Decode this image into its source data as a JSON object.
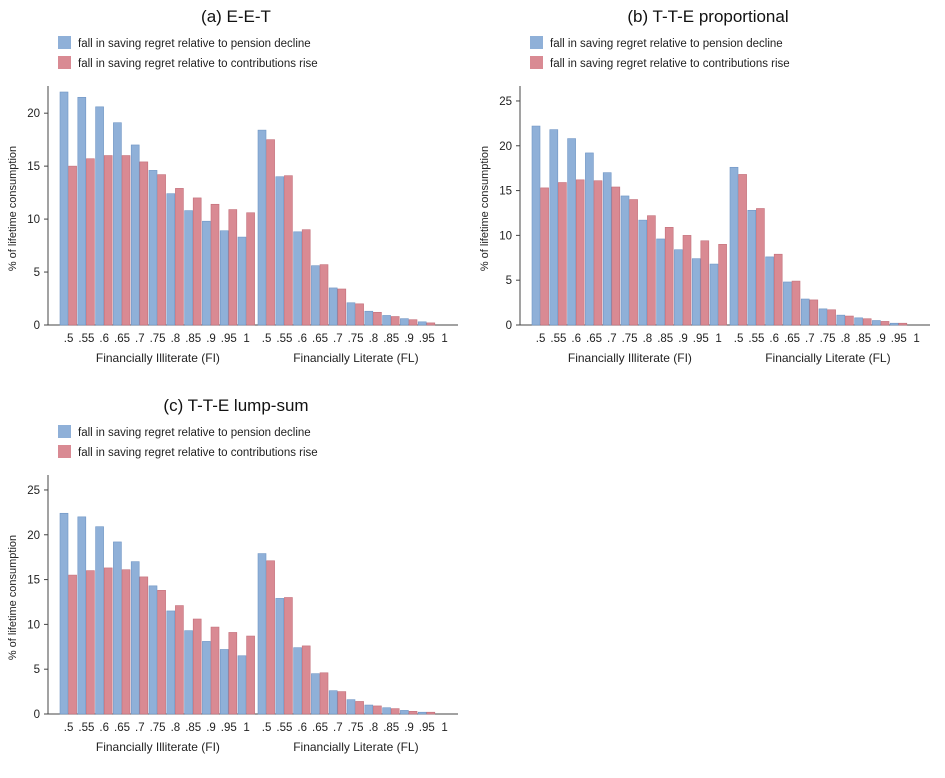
{
  "chart_data": [
    {
      "type": "bar",
      "title": "(a) E-E-T",
      "ylabel": "% of lifetime consumption",
      "ylim": [
        0,
        22
      ],
      "yticks": [
        0,
        5,
        10,
        15,
        20
      ],
      "groups": [
        {
          "label": "Financially Illiterate (FI)",
          "categories": [
            ".5",
            ".55",
            ".6",
            ".65",
            ".7",
            ".75",
            ".8",
            ".85",
            ".9",
            ".95",
            "1"
          ],
          "series": [
            {
              "name": "fall in saving regret relative to pension decline",
              "values": [
                22.0,
                21.5,
                20.6,
                19.1,
                17.0,
                14.6,
                12.4,
                10.8,
                9.8,
                8.9,
                8.3
              ]
            },
            {
              "name": "fall in saving regret relative to contributions rise",
              "values": [
                15.0,
                15.7,
                16.0,
                16.0,
                15.4,
                14.2,
                12.9,
                12.0,
                11.4,
                10.9,
                10.6
              ]
            }
          ]
        },
        {
          "label": "Financially Literate (FL)",
          "categories": [
            ".5",
            ".55",
            ".6",
            ".65",
            ".7",
            ".75",
            ".8",
            ".85",
            ".9",
            ".95",
            "1"
          ],
          "series": [
            {
              "name": "fall in saving regret relative to pension decline",
              "values": [
                18.4,
                14.0,
                8.8,
                5.6,
                3.5,
                2.1,
                1.3,
                0.9,
                0.6,
                0.3,
                0.0
              ]
            },
            {
              "name": "fall in saving regret relative to contributions rise",
              "values": [
                17.5,
                14.1,
                9.0,
                5.7,
                3.4,
                2.0,
                1.2,
                0.8,
                0.5,
                0.2,
                0.0
              ]
            }
          ]
        }
      ],
      "colors": [
        "#8fb0d8",
        "#d98a93"
      ],
      "legend": "top-left"
    },
    {
      "type": "bar",
      "title": "(b) T-T-E proportional",
      "ylabel": "% of lifetime consumption",
      "ylim": [
        0,
        26
      ],
      "yticks": [
        0,
        5,
        10,
        15,
        20,
        25
      ],
      "groups": [
        {
          "label": "Financially Illiterate (FI)",
          "categories": [
            ".5",
            ".55",
            ".6",
            ".65",
            ".7",
            ".75",
            ".8",
            ".85",
            ".9",
            ".95",
            "1"
          ],
          "series": [
            {
              "name": "fall in saving regret relative to pension decline",
              "values": [
                22.2,
                21.8,
                20.8,
                19.2,
                17.0,
                14.4,
                11.7,
                9.6,
                8.4,
                7.4,
                6.8
              ]
            },
            {
              "name": "fall in saving regret relative to contributions rise",
              "values": [
                15.3,
                15.9,
                16.2,
                16.1,
                15.4,
                14.0,
                12.2,
                10.9,
                10.0,
                9.4,
                9.0
              ]
            }
          ]
        },
        {
          "label": "Financially Literate (FL)",
          "categories": [
            ".5",
            ".55",
            ".6",
            ".65",
            ".7",
            ".75",
            ".8",
            ".85",
            ".9",
            ".95",
            "1"
          ],
          "series": [
            {
              "name": "fall in saving regret relative to pension decline",
              "values": [
                17.6,
                12.8,
                7.6,
                4.8,
                2.9,
                1.8,
                1.1,
                0.8,
                0.5,
                0.2,
                0.0
              ]
            },
            {
              "name": "fall in saving regret relative to contributions rise",
              "values": [
                16.8,
                13.0,
                7.9,
                4.9,
                2.8,
                1.7,
                1.0,
                0.7,
                0.4,
                0.2,
                0.0
              ]
            }
          ]
        }
      ],
      "colors": [
        "#8fb0d8",
        "#d98a93"
      ],
      "legend": "top-left"
    },
    {
      "type": "bar",
      "title": "(c) T-T-E lump-sum",
      "ylabel": "% of lifetime consumption",
      "ylim": [
        0,
        26
      ],
      "yticks": [
        0,
        5,
        10,
        15,
        20,
        25
      ],
      "groups": [
        {
          "label": "Financially Illiterate (FI)",
          "categories": [
            ".5",
            ".55",
            ".6",
            ".65",
            ".7",
            ".75",
            ".8",
            ".85",
            ".9",
            ".95",
            "1"
          ],
          "series": [
            {
              "name": "fall in saving regret relative to pension decline",
              "values": [
                22.4,
                22.0,
                20.9,
                19.2,
                17.0,
                14.3,
                11.5,
                9.3,
                8.1,
                7.2,
                6.5
              ]
            },
            {
              "name": "fall in saving regret relative to contributions rise",
              "values": [
                15.5,
                16.0,
                16.3,
                16.1,
                15.3,
                13.8,
                12.1,
                10.6,
                9.7,
                9.1,
                8.7
              ]
            }
          ]
        },
        {
          "label": "Financially Literate (FL)",
          "categories": [
            ".5",
            ".55",
            ".6",
            ".65",
            ".7",
            ".75",
            ".8",
            ".85",
            ".9",
            ".95",
            "1"
          ],
          "series": [
            {
              "name": "fall in saving regret relative to pension decline",
              "values": [
                17.9,
                12.9,
                7.4,
                4.5,
                2.6,
                1.6,
                1.0,
                0.7,
                0.4,
                0.2,
                0.0
              ]
            },
            {
              "name": "fall in saving regret relative to contributions rise",
              "values": [
                17.1,
                13.0,
                7.6,
                4.6,
                2.5,
                1.4,
                0.9,
                0.6,
                0.3,
                0.2,
                0.0
              ]
            }
          ]
        }
      ],
      "colors": [
        "#8fb0d8",
        "#d98a93"
      ],
      "legend": "top-left"
    }
  ]
}
